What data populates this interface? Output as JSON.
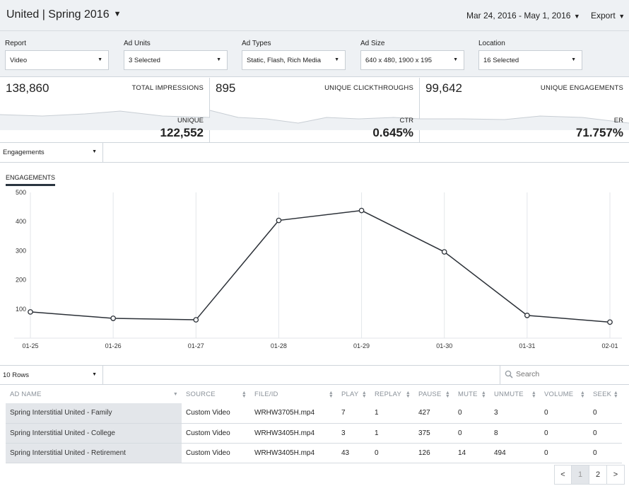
{
  "header": {
    "campaign": "United | Spring 2016",
    "date_range": "Mar 24, 2016 - May 1, 2016",
    "export_label": "Export"
  },
  "filters": [
    {
      "label": "Report",
      "value": "Video"
    },
    {
      "label": "Ad Units",
      "value": "3 Selected"
    },
    {
      "label": "Ad Types",
      "value": "Static, Flash, Rich Media"
    },
    {
      "label": "Ad Size",
      "value": "640 x 480, 1900 x 195"
    },
    {
      "label": "Location",
      "value": "16 Selected"
    }
  ],
  "kpis": [
    {
      "value": "138,860",
      "title": "TOTAL IMPRESSIONS",
      "sub_label": "UNIQUE",
      "sub_value": "122,552"
    },
    {
      "value": "895",
      "title": "UNIQUE CLICKTHROUGHS",
      "sub_label": "CTR",
      "sub_value": "0.645%"
    },
    {
      "value": "99,642",
      "title": "UNIQUE ENGAGEMENTS",
      "sub_label": "ER",
      "sub_value": "71.757%"
    }
  ],
  "metric_select": "Engagements",
  "chart_tab": "ENGAGEMENTS",
  "chart_data": {
    "type": "line",
    "title": "ENGAGEMENTS",
    "x": [
      "01-25",
      "01-26",
      "01-27",
      "01-28",
      "01-29",
      "01-30",
      "01-31",
      "02-01"
    ],
    "values": [
      90,
      68,
      63,
      404,
      438,
      296,
      78,
      55
    ],
    "ylim": [
      0,
      500
    ],
    "yticks": [
      100,
      200,
      300,
      400,
      500
    ],
    "grid": true,
    "color": "#2b3037"
  },
  "table_toolbar": {
    "rows_select": "10 Rows",
    "search_placeholder": "Search"
  },
  "table": {
    "columns": [
      "AD NAME",
      "SOURCE",
      "FILE/ID",
      "PLAY",
      "REPLAY",
      "PAUSE",
      "MUTE",
      "UNMUTE",
      "VOLUME",
      "SEEK"
    ],
    "rows": [
      [
        "Spring Interstitial United - Family",
        "Custom Video",
        "WRHW3705H.mp4",
        "7",
        "1",
        "427",
        "0",
        "3",
        "0",
        "0"
      ],
      [
        "Spring Interstitial United - College",
        "Custom Video",
        "WRHW3405H.mp4",
        "3",
        "1",
        "375",
        "0",
        "8",
        "0",
        "0"
      ],
      [
        "Spring Interstitial United - Retirement",
        "Custom Video",
        "WRHW3405H.mp4",
        "43",
        "0",
        "126",
        "14",
        "494",
        "0",
        "0"
      ]
    ]
  },
  "pager": {
    "prev": "<",
    "pages": [
      "1",
      "2"
    ],
    "next": ">"
  }
}
